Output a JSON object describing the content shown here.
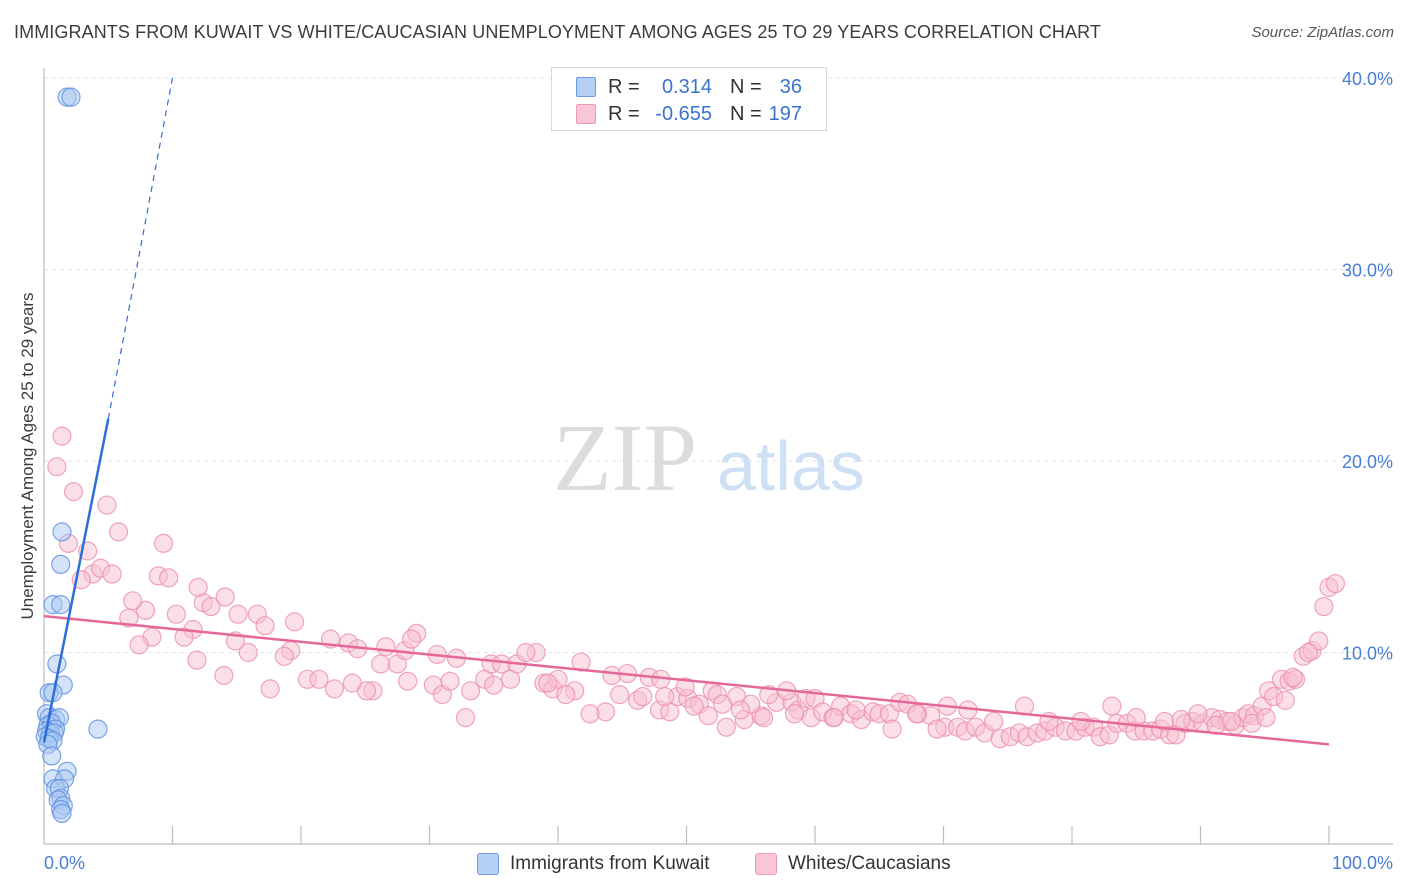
{
  "title": "IMMIGRANTS FROM KUWAIT VS WHITE/CAUCASIAN UNEMPLOYMENT AMONG AGES 25 TO 29 YEARS CORRELATION CHART",
  "source": "Source: ZipAtlas.com",
  "watermark": {
    "zip": "ZIP",
    "atlas": "atlas"
  },
  "colors": {
    "blue_fill": "#a9c8f3",
    "blue_stroke": "#5b8fdc",
    "blue_line": "#2e6fd6",
    "pink_fill": "#f7bfd0",
    "pink_stroke": "#ec8fae",
    "pink_line": "#e5689a",
    "tick_text": "#4a7dd6"
  },
  "legend": {
    "rows": [
      {
        "r_label": "R =",
        "r_value": "0.314",
        "n_label": "N =",
        "n_value": "36"
      },
      {
        "r_label": "R =",
        "r_value": "-0.655",
        "n_label": "N =",
        "n_value": "197"
      }
    ]
  },
  "bottom_legend": {
    "blue": "Immigrants from Kuwait",
    "pink": "Whites/Caucasians"
  },
  "chart_data": {
    "type": "scatter",
    "xlabel": "",
    "ylabel": "Unemployment Among Ages 25 to 29 years",
    "xlim": [
      0,
      100
    ],
    "ylim": [
      0,
      40
    ],
    "x_tick_labels": [
      "0.0%",
      "100.0%"
    ],
    "y_ticks": [
      10,
      20,
      30,
      40
    ],
    "y_tick_labels": [
      "10.0%",
      "20.0%",
      "30.0%",
      "40.0%"
    ],
    "gridlines": true,
    "series": [
      {
        "name": "Immigrants from Kuwait",
        "color": "blue",
        "R": 0.314,
        "N": 36,
        "trend": {
          "x0": 0,
          "y0": 5.3,
          "x1": 5,
          "y1": 22.2,
          "dash_x_end": 10,
          "dash_y_end": 40
        },
        "points": [
          [
            1.8,
            39.0
          ],
          [
            2.1,
            39.0
          ],
          [
            1.4,
            16.3
          ],
          [
            1.3,
            14.6
          ],
          [
            0.7,
            12.5
          ],
          [
            1.3,
            12.5
          ],
          [
            1.0,
            9.4
          ],
          [
            1.5,
            8.3
          ],
          [
            0.4,
            7.9
          ],
          [
            0.7,
            7.9
          ],
          [
            0.2,
            6.8
          ],
          [
            0.4,
            6.6
          ],
          [
            0.9,
            6.5
          ],
          [
            1.2,
            6.6
          ],
          [
            0.3,
            6.2
          ],
          [
            0.6,
            6.3
          ],
          [
            0.9,
            6.0
          ],
          [
            0.2,
            5.9
          ],
          [
            0.5,
            5.8
          ],
          [
            0.8,
            5.8
          ],
          [
            0.1,
            5.6
          ],
          [
            0.4,
            5.5
          ],
          [
            0.7,
            5.4
          ],
          [
            4.2,
            6.0
          ],
          [
            0.3,
            5.2
          ],
          [
            0.6,
            4.6
          ],
          [
            1.8,
            3.8
          ],
          [
            0.7,
            3.4
          ],
          [
            1.6,
            3.4
          ],
          [
            0.9,
            2.9
          ],
          [
            1.2,
            2.9
          ],
          [
            1.3,
            2.4
          ],
          [
            1.1,
            2.3
          ],
          [
            1.5,
            2.0
          ],
          [
            1.3,
            1.8
          ],
          [
            1.4,
            1.6
          ]
        ]
      },
      {
        "name": "Whites/Caucasians",
        "color": "pink",
        "R": -0.655,
        "N": 197,
        "trend": {
          "x0": 0,
          "y0": 11.9,
          "x1": 100,
          "y1": 5.2
        },
        "points": [
          [
            1.4,
            21.3
          ],
          [
            1.0,
            19.7
          ],
          [
            2.3,
            18.4
          ],
          [
            1.9,
            15.7
          ],
          [
            3.4,
            15.3
          ],
          [
            3.8,
            14.1
          ],
          [
            4.4,
            14.4
          ],
          [
            5.3,
            14.1
          ],
          [
            2.9,
            13.8
          ],
          [
            4.9,
            17.7
          ],
          [
            5.8,
            16.3
          ],
          [
            9.3,
            15.7
          ],
          [
            8.9,
            14.0
          ],
          [
            9.7,
            13.9
          ],
          [
            6.6,
            11.8
          ],
          [
            7.9,
            12.2
          ],
          [
            6.9,
            12.7
          ],
          [
            10.3,
            12.0
          ],
          [
            11.6,
            11.2
          ],
          [
            10.9,
            10.8
          ],
          [
            8.4,
            10.8
          ],
          [
            7.4,
            10.4
          ],
          [
            12.4,
            12.6
          ],
          [
            13.0,
            12.4
          ],
          [
            12.0,
            13.4
          ],
          [
            14.1,
            12.9
          ],
          [
            15.1,
            12.0
          ],
          [
            16.6,
            12.0
          ],
          [
            17.2,
            11.4
          ],
          [
            19.5,
            11.6
          ],
          [
            14.9,
            10.6
          ],
          [
            15.9,
            10.0
          ],
          [
            19.2,
            10.1
          ],
          [
            18.7,
            9.8
          ],
          [
            11.9,
            9.6
          ],
          [
            14.0,
            8.8
          ],
          [
            17.6,
            8.1
          ],
          [
            20.5,
            8.6
          ],
          [
            21.4,
            8.6
          ],
          [
            22.3,
            10.7
          ],
          [
            23.7,
            10.5
          ],
          [
            24.4,
            10.2
          ],
          [
            22.6,
            8.1
          ],
          [
            24.0,
            8.4
          ],
          [
            25.6,
            8.0
          ],
          [
            25.1,
            8.0
          ],
          [
            26.2,
            9.4
          ],
          [
            26.6,
            10.3
          ],
          [
            27.5,
            9.4
          ],
          [
            28.1,
            10.1
          ],
          [
            29.0,
            11.0
          ],
          [
            28.6,
            10.7
          ],
          [
            28.3,
            8.5
          ],
          [
            30.3,
            8.3
          ],
          [
            31.0,
            7.8
          ],
          [
            31.6,
            8.5
          ],
          [
            30.6,
            9.9
          ],
          [
            32.1,
            9.7
          ],
          [
            33.2,
            8.0
          ],
          [
            32.8,
            6.6
          ],
          [
            34.3,
            8.6
          ],
          [
            34.8,
            9.4
          ],
          [
            35.6,
            9.4
          ],
          [
            36.8,
            9.4
          ],
          [
            36.3,
            8.6
          ],
          [
            38.3,
            10.0
          ],
          [
            37.5,
            10.0
          ],
          [
            38.9,
            8.4
          ],
          [
            39.6,
            8.1
          ],
          [
            40.0,
            8.6
          ],
          [
            39.2,
            8.4
          ],
          [
            41.3,
            8.0
          ],
          [
            35.0,
            8.3
          ],
          [
            41.8,
            9.5
          ],
          [
            40.6,
            7.8
          ],
          [
            43.7,
            6.9
          ],
          [
            42.5,
            6.8
          ],
          [
            44.2,
            8.8
          ],
          [
            45.4,
            8.9
          ],
          [
            47.1,
            8.7
          ],
          [
            44.8,
            7.8
          ],
          [
            46.2,
            7.5
          ],
          [
            47.9,
            7.0
          ],
          [
            48.7,
            6.9
          ],
          [
            48.0,
            8.6
          ],
          [
            49.3,
            7.7
          ],
          [
            50.1,
            7.6
          ],
          [
            51.0,
            7.3
          ],
          [
            52.0,
            8.0
          ],
          [
            52.4,
            7.8
          ],
          [
            50.6,
            7.2
          ],
          [
            53.1,
            6.1
          ],
          [
            53.9,
            7.7
          ],
          [
            54.5,
            6.5
          ],
          [
            55.8,
            6.7
          ],
          [
            55.0,
            7.3
          ],
          [
            57.0,
            7.4
          ],
          [
            56.4,
            7.8
          ],
          [
            58.2,
            7.4
          ],
          [
            58.7,
            7.0
          ],
          [
            59.7,
            6.6
          ],
          [
            59.3,
            7.6
          ],
          [
            60.0,
            7.6
          ],
          [
            60.6,
            6.9
          ],
          [
            61.4,
            6.6
          ],
          [
            62.0,
            7.2
          ],
          [
            62.8,
            6.8
          ],
          [
            63.6,
            6.5
          ],
          [
            61.5,
            6.6
          ],
          [
            64.5,
            6.9
          ],
          [
            65.0,
            6.8
          ],
          [
            65.8,
            6.8
          ],
          [
            66.6,
            7.4
          ],
          [
            67.2,
            7.3
          ],
          [
            68.0,
            6.8
          ],
          [
            69.0,
            6.7
          ],
          [
            70.1,
            6.1
          ],
          [
            70.3,
            7.2
          ],
          [
            71.1,
            6.1
          ],
          [
            71.7,
            5.9
          ],
          [
            72.5,
            6.1
          ],
          [
            73.2,
            5.8
          ],
          [
            73.9,
            6.4
          ],
          [
            74.4,
            5.5
          ],
          [
            75.2,
            5.6
          ],
          [
            75.9,
            5.8
          ],
          [
            76.5,
            5.6
          ],
          [
            77.3,
            5.8
          ],
          [
            77.9,
            5.9
          ],
          [
            78.7,
            6.1
          ],
          [
            79.5,
            5.9
          ],
          [
            80.3,
            5.9
          ],
          [
            81.0,
            6.1
          ],
          [
            81.7,
            6.1
          ],
          [
            82.2,
            5.6
          ],
          [
            82.9,
            5.7
          ],
          [
            83.5,
            6.3
          ],
          [
            84.3,
            6.3
          ],
          [
            84.9,
            5.9
          ],
          [
            85.6,
            5.9
          ],
          [
            86.3,
            5.9
          ],
          [
            86.9,
            6.0
          ],
          [
            87.6,
            5.7
          ],
          [
            88.1,
            5.7
          ],
          [
            88.8,
            6.3
          ],
          [
            89.4,
            6.4
          ],
          [
            90.2,
            6.3
          ],
          [
            90.9,
            6.6
          ],
          [
            91.5,
            6.5
          ],
          [
            92.1,
            6.4
          ],
          [
            92.7,
            6.2
          ],
          [
            93.3,
            6.6
          ],
          [
            93.7,
            6.8
          ],
          [
            94.2,
            6.7
          ],
          [
            94.8,
            7.2
          ],
          [
            95.3,
            8.0
          ],
          [
            95.7,
            7.7
          ],
          [
            96.3,
            8.6
          ],
          [
            96.9,
            8.5
          ],
          [
            97.4,
            8.6
          ],
          [
            98.0,
            9.8
          ],
          [
            98.7,
            10.1
          ],
          [
            99.2,
            10.6
          ],
          [
            99.6,
            12.4
          ],
          [
            100.0,
            13.4
          ],
          [
            100.5,
            13.6
          ],
          [
            67.9,
            6.8
          ],
          [
            69.5,
            6.0
          ],
          [
            71.9,
            7.0
          ],
          [
            76.3,
            7.2
          ],
          [
            78.2,
            6.4
          ],
          [
            80.7,
            6.4
          ],
          [
            83.1,
            7.2
          ],
          [
            85.0,
            6.6
          ],
          [
            87.2,
            6.4
          ],
          [
            88.5,
            6.5
          ],
          [
            89.8,
            6.8
          ],
          [
            91.2,
            6.2
          ],
          [
            92.4,
            6.4
          ],
          [
            94.0,
            6.3
          ],
          [
            95.1,
            6.6
          ],
          [
            96.6,
            7.5
          ],
          [
            97.2,
            8.7
          ],
          [
            98.4,
            10.0
          ],
          [
            66.0,
            6.0
          ],
          [
            63.2,
            7.0
          ],
          [
            57.8,
            8.0
          ],
          [
            58.4,
            6.8
          ],
          [
            56.0,
            6.6
          ],
          [
            54.2,
            7.0
          ],
          [
            52.8,
            7.3
          ],
          [
            51.7,
            6.7
          ],
          [
            49.9,
            8.2
          ],
          [
            48.3,
            7.7
          ],
          [
            46.6,
            7.7
          ]
        ]
      }
    ]
  }
}
